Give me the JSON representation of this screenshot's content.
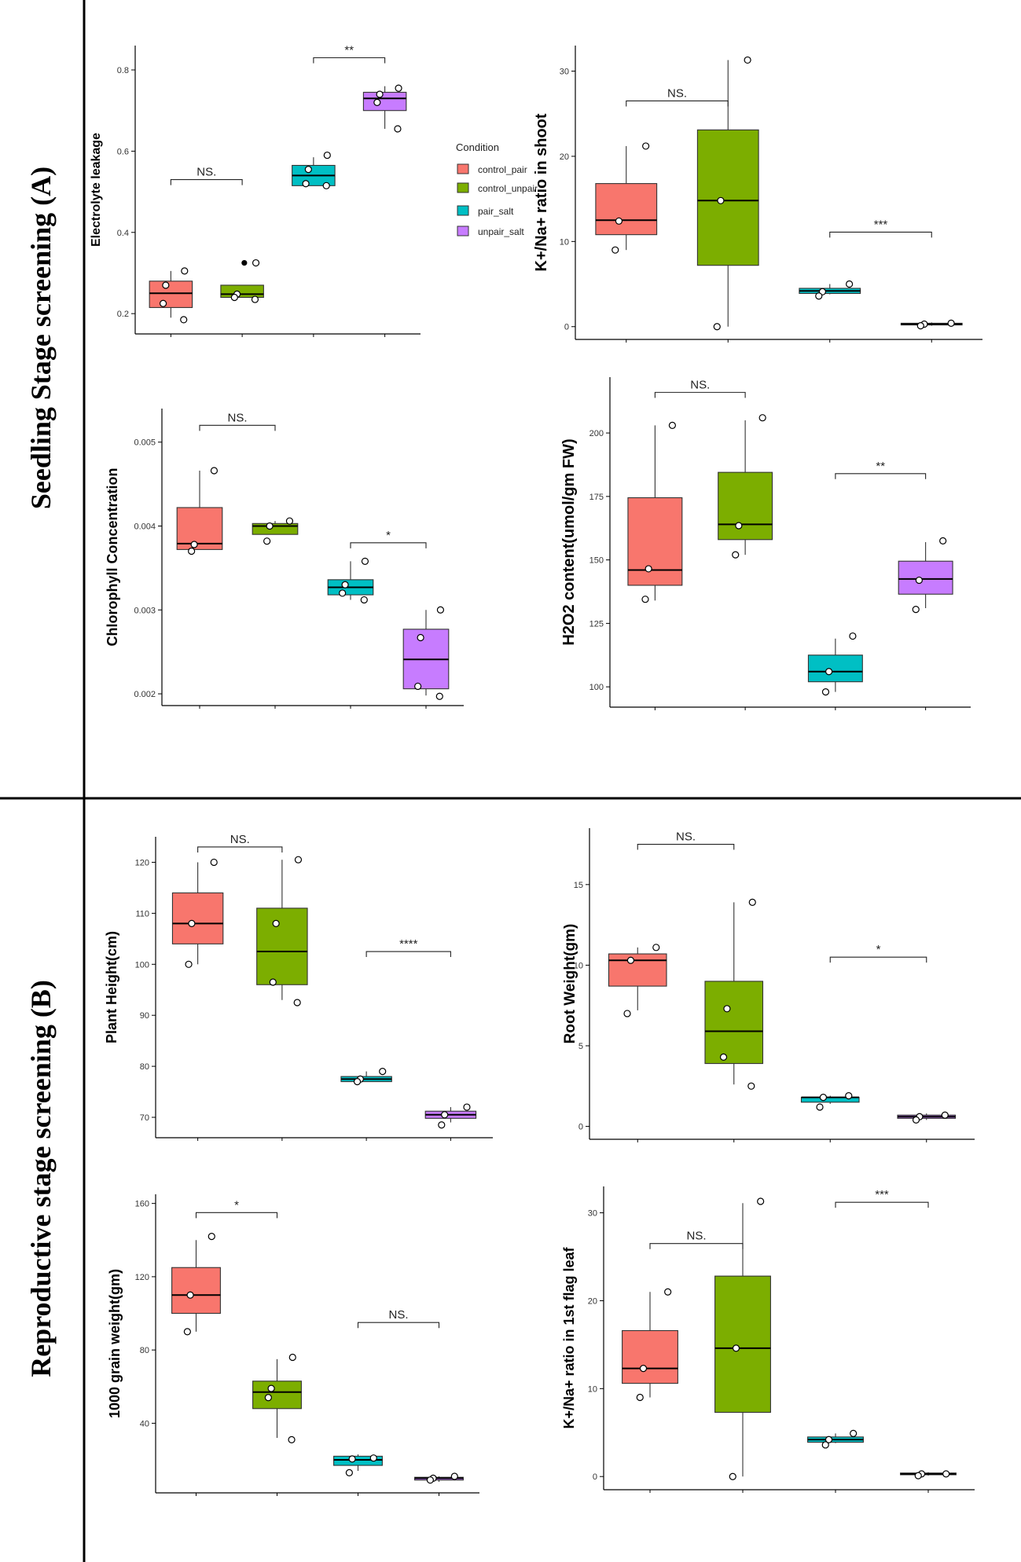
{
  "figure": {
    "sections": [
      {
        "id": "A",
        "label": "Seedling Stage screening (A)"
      },
      {
        "id": "B",
        "label": "Reproductive stage screening (B)"
      }
    ]
  },
  "legend": {
    "title": "Condition",
    "items": [
      {
        "label": "control_pair",
        "color": "#F8766D"
      },
      {
        "label": "control_unpair",
        "color": "#7CAE00"
      },
      {
        "label": "pair_salt",
        "color": "#00BFC4"
      },
      {
        "label": "unpair_salt",
        "color": "#C77CFF"
      }
    ]
  },
  "chart_data": [
    {
      "type": "box",
      "id": "electrolyte",
      "ylabel": "Electrolyte leakage",
      "ylim": [
        0.15,
        0.86
      ],
      "yticks": [
        "0.2",
        "0.4",
        "0.6",
        "0.8"
      ],
      "groups": [
        {
          "name": "control_pair",
          "color": "#F8766D",
          "whisker_low": 0.19,
          "q1": 0.215,
          "median": 0.25,
          "q3": 0.28,
          "whisker_high": 0.305,
          "points": [
            0.305,
            0.27,
            0.225,
            0.185
          ]
        },
        {
          "name": "control_unpair",
          "color": "#7CAE00",
          "whisker_low": 0.24,
          "q1": 0.24,
          "median": 0.248,
          "q3": 0.27,
          "whisker_high": 0.27,
          "points": [
            0.325,
            0.248,
            0.24,
            0.235
          ],
          "outliers": [
            0.325
          ]
        },
        {
          "name": "pair_salt",
          "color": "#00BFC4",
          "whisker_low": 0.515,
          "q1": 0.515,
          "median": 0.54,
          "q3": 0.565,
          "whisker_high": 0.585,
          "points": [
            0.59,
            0.555,
            0.52,
            0.515
          ]
        },
        {
          "name": "unpair_salt",
          "color": "#C77CFF",
          "whisker_low": 0.655,
          "q1": 0.7,
          "median": 0.73,
          "q3": 0.745,
          "whisker_high": 0.76,
          "points": [
            0.755,
            0.74,
            0.72,
            0.655
          ]
        }
      ],
      "significance": [
        {
          "from": 0,
          "to": 1,
          "y": 0.53,
          "label": "NS."
        },
        {
          "from": 2,
          "to": 3,
          "y": 0.83,
          "label": "**"
        }
      ]
    },
    {
      "type": "box",
      "id": "kna_shoot",
      "ylabel": "K+/Na+ ratio in shoot",
      "ylim": [
        -1.5,
        33
      ],
      "yticks": [
        "0",
        "10",
        "20",
        "30"
      ],
      "groups": [
        {
          "name": "control_pair",
          "color": "#F8766D",
          "whisker_low": 9,
          "q1": 10.8,
          "median": 12.5,
          "q3": 16.8,
          "whisker_high": 21.2,
          "points": [
            21.2,
            12.4,
            9
          ]
        },
        {
          "name": "control_unpair",
          "color": "#7CAE00",
          "whisker_low": 0,
          "q1": 7.2,
          "median": 14.8,
          "q3": 23.1,
          "whisker_high": 31.3,
          "points": [
            31.3,
            14.8,
            0
          ]
        },
        {
          "name": "pair_salt",
          "color": "#00BFC4",
          "whisker_low": 3.8,
          "q1": 3.9,
          "median": 4.2,
          "q3": 4.5,
          "whisker_high": 5,
          "points": [
            5,
            4.1,
            3.6
          ]
        },
        {
          "name": "unpair_salt",
          "color": "#C77CFF",
          "whisker_low": 0.1,
          "q1": 0.2,
          "median": 0.3,
          "q3": 0.4,
          "whisker_high": 0.5,
          "points": [
            0.4,
            0.3,
            0.1
          ]
        }
      ],
      "significance": [
        {
          "from": 0,
          "to": 1,
          "y": 26.5,
          "label": "NS."
        },
        {
          "from": 2,
          "to": 3,
          "y": 11.1,
          "label": "***"
        }
      ]
    },
    {
      "type": "box",
      "id": "chlorophyll",
      "ylabel": "Chlorophyll Concentration",
      "ylim": [
        0.00186,
        0.0054
      ],
      "yticks": [
        "0.002",
        "0.003",
        "0.004",
        "0.005"
      ],
      "groups": [
        {
          "name": "control_pair",
          "color": "#F8766D",
          "whisker_low": 0.00372,
          "q1": 0.00372,
          "median": 0.00379,
          "q3": 0.00422,
          "whisker_high": 0.00466,
          "points": [
            0.00466,
            0.00378,
            0.0037
          ]
        },
        {
          "name": "control_unpair",
          "color": "#7CAE00",
          "whisker_low": 0.0039,
          "q1": 0.0039,
          "median": 0.004,
          "q3": 0.00403,
          "whisker_high": 0.00406,
          "points": [
            0.00406,
            0.004,
            0.00382
          ]
        },
        {
          "name": "pair_salt",
          "color": "#00BFC4",
          "whisker_low": 0.00312,
          "q1": 0.00318,
          "median": 0.00327,
          "q3": 0.00336,
          "whisker_high": 0.00358,
          "points": [
            0.00358,
            0.0033,
            0.0032,
            0.00312
          ]
        },
        {
          "name": "unpair_salt",
          "color": "#C77CFF",
          "whisker_low": 0.00198,
          "q1": 0.00206,
          "median": 0.00241,
          "q3": 0.00277,
          "whisker_high": 0.003,
          "points": [
            0.003,
            0.00267,
            0.00209,
            0.00197
          ]
        }
      ],
      "significance": [
        {
          "from": 0,
          "to": 1,
          "y": 0.0052,
          "label": "NS."
        },
        {
          "from": 2,
          "to": 3,
          "y": 0.0038,
          "label": "*"
        }
      ]
    },
    {
      "type": "box",
      "id": "h2o2",
      "ylabel": "H2O2 content(umol/gm FW)",
      "ylim": [
        92,
        222
      ],
      "yticks": [
        "100",
        "125",
        "150",
        "175",
        "200"
      ],
      "groups": [
        {
          "name": "control_pair",
          "color": "#F8766D",
          "whisker_low": 134,
          "q1": 140,
          "median": 146,
          "q3": 174.5,
          "whisker_high": 203,
          "points": [
            203,
            146.5,
            134.5
          ]
        },
        {
          "name": "control_unpair",
          "color": "#7CAE00",
          "whisker_low": 152,
          "q1": 158,
          "median": 164,
          "q3": 184.5,
          "whisker_high": 205,
          "points": [
            206,
            163.5,
            152
          ]
        },
        {
          "name": "pair_salt",
          "color": "#00BFC4",
          "whisker_low": 98,
          "q1": 102,
          "median": 106,
          "q3": 112.5,
          "whisker_high": 119,
          "points": [
            120,
            106,
            98
          ]
        },
        {
          "name": "unpair_salt",
          "color": "#C77CFF",
          "whisker_low": 131,
          "q1": 136.5,
          "median": 142.5,
          "q3": 149.5,
          "whisker_high": 157,
          "points": [
            157.5,
            142,
            130.5
          ]
        }
      ],
      "significance": [
        {
          "from": 0,
          "to": 1,
          "y": 216,
          "label": "NS."
        },
        {
          "from": 2,
          "to": 3,
          "y": 184,
          "label": "**"
        }
      ]
    },
    {
      "type": "box",
      "id": "plant_height",
      "ylabel": "Plant Height(cm)",
      "ylim": [
        66,
        125
      ],
      "yticks": [
        "70",
        "80",
        "90",
        "100",
        "110",
        "120"
      ],
      "groups": [
        {
          "name": "control_pair",
          "color": "#F8766D",
          "whisker_low": 100,
          "q1": 104,
          "median": 108,
          "q3": 114,
          "whisker_high": 120,
          "points": [
            120,
            108,
            100
          ]
        },
        {
          "name": "control_unpair",
          "color": "#7CAE00",
          "whisker_low": 93,
          "q1": 96,
          "median": 102.5,
          "q3": 111,
          "whisker_high": 120.5,
          "points": [
            120.5,
            108,
            96.5,
            92.5
          ]
        },
        {
          "name": "pair_salt",
          "color": "#00BFC4",
          "whisker_low": 77,
          "q1": 77,
          "median": 77.5,
          "q3": 78,
          "whisker_high": 79,
          "points": [
            79,
            77.5,
            77
          ]
        },
        {
          "name": "unpair_salt",
          "color": "#C77CFF",
          "whisker_low": 69,
          "q1": 69.8,
          "median": 70.5,
          "q3": 71.2,
          "whisker_high": 72,
          "points": [
            72,
            70.5,
            68.5
          ]
        }
      ],
      "significance": [
        {
          "from": 0,
          "to": 1,
          "y": 123,
          "label": "NS."
        },
        {
          "from": 2,
          "to": 3,
          "y": 102.5,
          "label": "****"
        }
      ]
    },
    {
      "type": "box",
      "id": "root_weight",
      "ylabel": "Root Weight(gm)",
      "ylim": [
        -0.8,
        18.5
      ],
      "yticks": [
        "0",
        "5",
        "10",
        "15"
      ],
      "groups": [
        {
          "name": "control_pair",
          "color": "#F8766D",
          "whisker_low": 7.2,
          "q1": 8.7,
          "median": 10.3,
          "q3": 10.7,
          "whisker_high": 11.1,
          "points": [
            11.1,
            10.3,
            7
          ]
        },
        {
          "name": "control_unpair",
          "color": "#7CAE00",
          "whisker_low": 2.6,
          "q1": 3.9,
          "median": 5.9,
          "q3": 9,
          "whisker_high": 13.9,
          "points": [
            13.9,
            7.3,
            4.3,
            2.5
          ]
        },
        {
          "name": "pair_salt",
          "color": "#00BFC4",
          "whisker_low": 1.4,
          "q1": 1.5,
          "median": 1.8,
          "q3": 1.8,
          "whisker_high": 1.9,
          "points": [
            1.9,
            1.8,
            1.2
          ]
        },
        {
          "name": "unpair_salt",
          "color": "#C77CFF",
          "whisker_low": 0.4,
          "q1": 0.5,
          "median": 0.6,
          "q3": 0.7,
          "whisker_high": 0.8,
          "points": [
            0.7,
            0.6,
            0.4
          ]
        }
      ],
      "significance": [
        {
          "from": 0,
          "to": 1,
          "y": 17.5,
          "label": "NS."
        },
        {
          "from": 2,
          "to": 3,
          "y": 10.5,
          "label": "*"
        }
      ]
    },
    {
      "type": "box",
      "id": "grain_weight",
      "ylabel": "1000 grain weight(gm)",
      "ylim": [
        2,
        165
      ],
      "yticks": [
        "40",
        "80",
        "120",
        "160"
      ],
      "groups": [
        {
          "name": "control_pair",
          "color": "#F8766D",
          "whisker_low": 90,
          "q1": 100,
          "median": 110,
          "q3": 125,
          "whisker_high": 140,
          "points": [
            142,
            110,
            90
          ]
        },
        {
          "name": "control_unpair",
          "color": "#7CAE00",
          "whisker_low": 32,
          "q1": 48,
          "median": 57,
          "q3": 63,
          "whisker_high": 75,
          "points": [
            76,
            59,
            54,
            31
          ]
        },
        {
          "name": "pair_salt",
          "color": "#00BFC4",
          "whisker_low": 14,
          "q1": 17,
          "median": 20,
          "q3": 22,
          "whisker_high": 23,
          "points": [
            21,
            20.5,
            13
          ]
        },
        {
          "name": "unpair_salt",
          "color": "#C77CFF",
          "whisker_low": 8,
          "q1": 9,
          "median": 10,
          "q3": 10.5,
          "whisker_high": 11,
          "points": [
            11,
            10,
            9
          ]
        }
      ],
      "significance": [
        {
          "from": 0,
          "to": 1,
          "y": 155,
          "label": "*"
        },
        {
          "from": 2,
          "to": 3,
          "y": 95,
          "label": "NS."
        }
      ]
    },
    {
      "type": "box",
      "id": "kna_flag",
      "ylabel": "K+/Na+ ratio in 1st flag leaf",
      "ylim": [
        -1.5,
        33
      ],
      "yticks": [
        "0",
        "10",
        "20",
        "30"
      ],
      "groups": [
        {
          "name": "control_pair",
          "color": "#F8766D",
          "whisker_low": 9,
          "q1": 10.6,
          "median": 12.3,
          "q3": 16.6,
          "whisker_high": 21,
          "points": [
            21,
            12.3,
            9
          ]
        },
        {
          "name": "control_unpair",
          "color": "#7CAE00",
          "whisker_low": 0,
          "q1": 7.3,
          "median": 14.6,
          "q3": 22.8,
          "whisker_high": 31.1,
          "points": [
            31.3,
            14.6,
            0
          ]
        },
        {
          "name": "pair_salt",
          "color": "#00BFC4",
          "whisker_low": 3.8,
          "q1": 3.9,
          "median": 4.2,
          "q3": 4.5,
          "whisker_high": 4.9,
          "points": [
            4.9,
            4.2,
            3.6
          ]
        },
        {
          "name": "unpair_salt",
          "color": "#C77CFF",
          "whisker_low": 0.1,
          "q1": 0.2,
          "median": 0.3,
          "q3": 0.4,
          "whisker_high": 0.5,
          "points": [
            0.3,
            0.3,
            0.1
          ]
        }
      ],
      "significance": [
        {
          "from": 0,
          "to": 1,
          "y": 26.5,
          "label": "NS."
        },
        {
          "from": 2,
          "to": 3,
          "y": 31.2,
          "label": "***"
        }
      ]
    }
  ]
}
